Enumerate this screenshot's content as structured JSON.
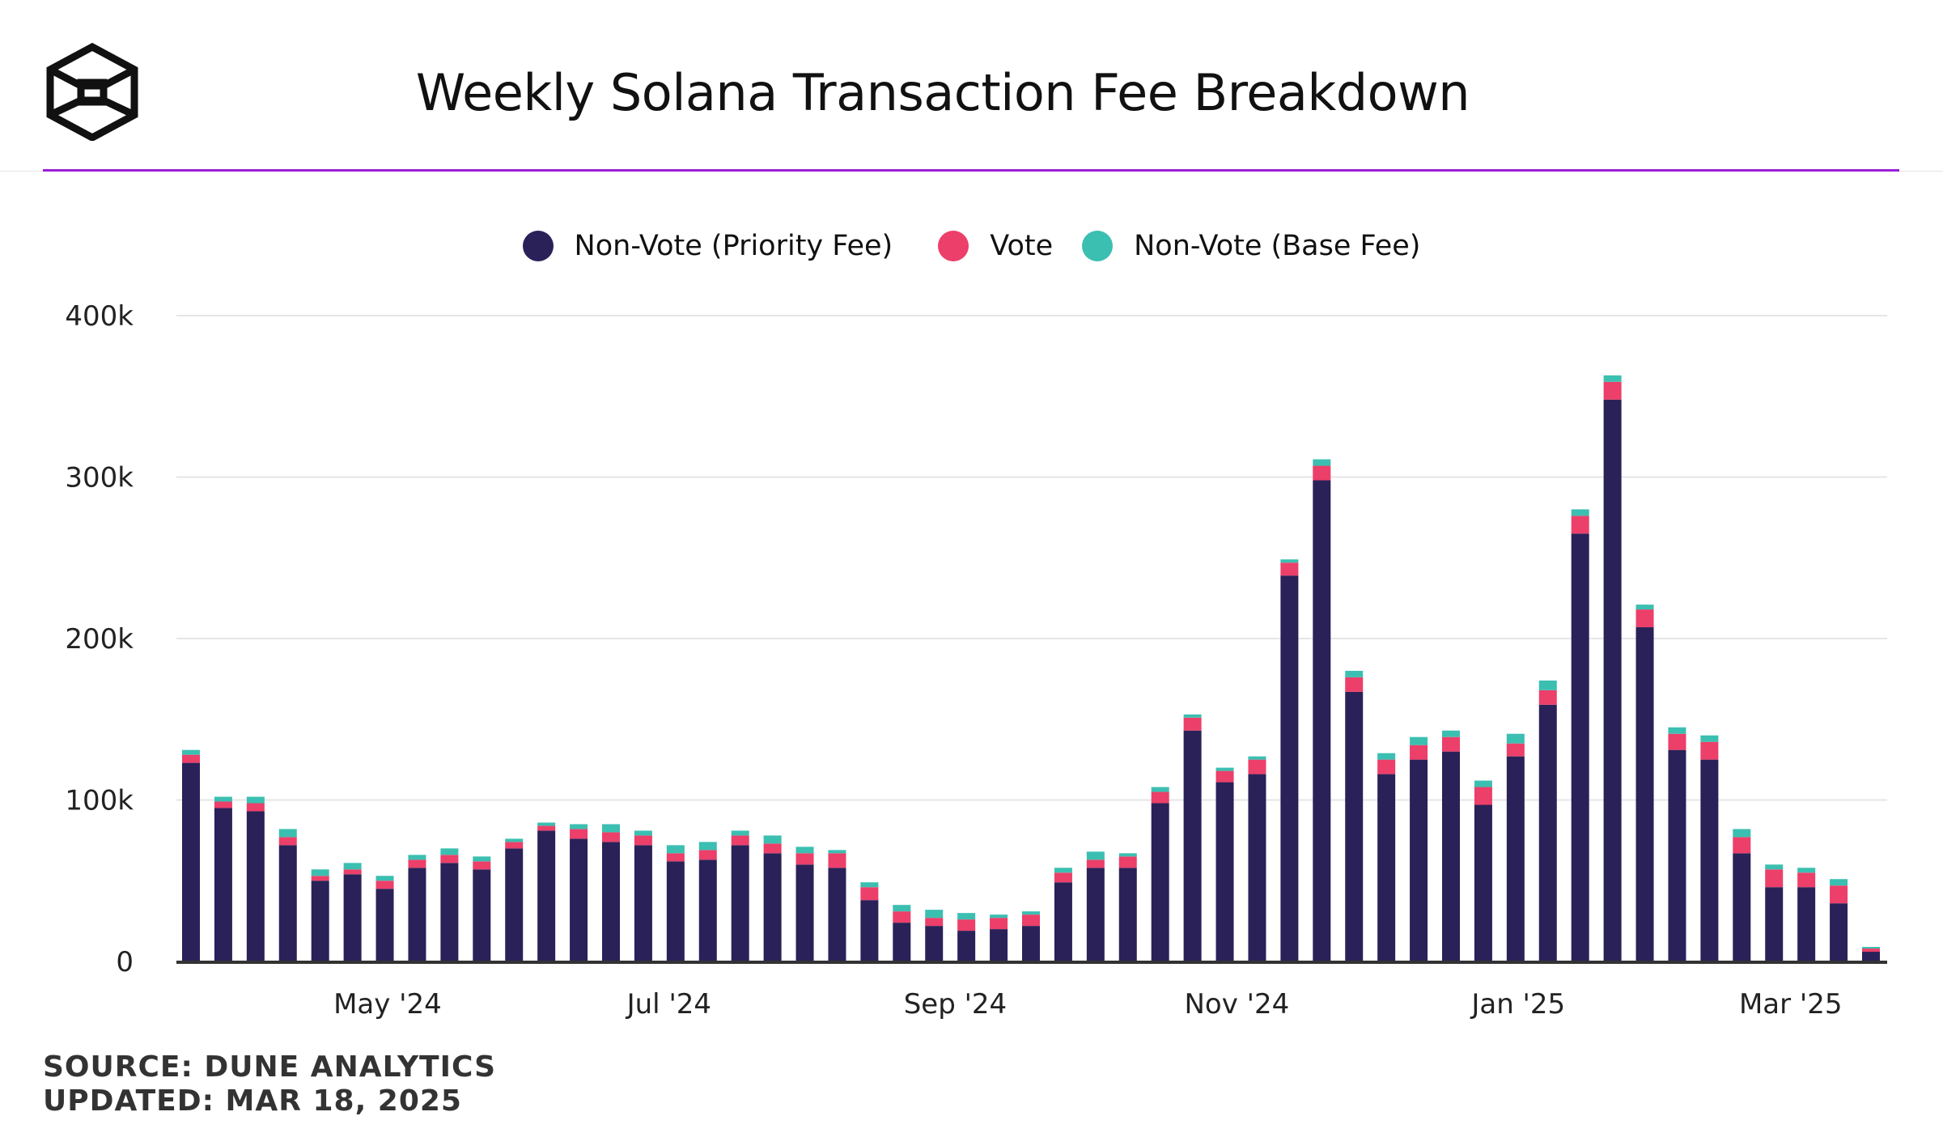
{
  "title": "Weekly Solana Transaction Fee Breakdown",
  "source": "SOURCE: DUNE ANALYTICS",
  "updated": "UPDATED: MAR 18, 2025",
  "logo": "cube-logo-icon",
  "colors": {
    "priority": "#2a2159",
    "vote": "#ec3f69",
    "base": "#3bbfb1",
    "accent": "#9b1fd6"
  },
  "chart_data": {
    "type": "bar",
    "stacked": true,
    "title": "Weekly Solana Transaction Fee Breakdown",
    "legend_position": "top",
    "grid": true,
    "ylim": [
      0,
      400000
    ],
    "yticks": [
      0,
      100000,
      200000,
      300000,
      400000
    ],
    "ytick_labels": [
      "0",
      "100k",
      "200k",
      "300k",
      "400k"
    ],
    "xtick_labels": [
      {
        "date": "2024-05-01",
        "label": "May '24"
      },
      {
        "date": "2024-07-01",
        "label": "Jul '24"
      },
      {
        "date": "2024-09-01",
        "label": "Sep '24"
      },
      {
        "date": "2024-11-01",
        "label": "Nov '24"
      },
      {
        "date": "2025-01-01",
        "label": "Jan '25"
      },
      {
        "date": "2025-03-01",
        "label": "Mar '25"
      }
    ],
    "x": [
      "2024-03-18",
      "2024-03-25",
      "2024-04-01",
      "2024-04-08",
      "2024-04-15",
      "2024-04-22",
      "2024-04-29",
      "2024-05-06",
      "2024-05-13",
      "2024-05-20",
      "2024-05-27",
      "2024-06-03",
      "2024-06-10",
      "2024-06-17",
      "2024-06-24",
      "2024-07-01",
      "2024-07-08",
      "2024-07-15",
      "2024-07-22",
      "2024-07-29",
      "2024-08-05",
      "2024-08-12",
      "2024-08-19",
      "2024-08-26",
      "2024-09-02",
      "2024-09-09",
      "2024-09-16",
      "2024-09-23",
      "2024-09-30",
      "2024-10-07",
      "2024-10-14",
      "2024-10-21",
      "2024-10-28",
      "2024-11-04",
      "2024-11-11",
      "2024-11-18",
      "2024-11-25",
      "2024-12-02",
      "2024-12-09",
      "2024-12-16",
      "2024-12-23",
      "2024-12-30",
      "2025-01-06",
      "2025-01-13",
      "2025-01-20",
      "2025-01-27",
      "2025-02-03",
      "2025-02-10",
      "2025-02-17",
      "2025-02-24",
      "2025-03-03",
      "2025-03-10",
      "2025-03-17"
    ],
    "series": [
      {
        "name": "Non-Vote (Priority Fee)",
        "color": "#2a2159",
        "values": [
          123000,
          95000,
          93000,
          72000,
          50000,
          54000,
          45000,
          58000,
          61000,
          57000,
          70000,
          81000,
          76000,
          74000,
          72000,
          62000,
          63000,
          72000,
          67000,
          60000,
          58000,
          38000,
          24000,
          22000,
          19000,
          20000,
          22000,
          49000,
          58000,
          58000,
          98000,
          143000,
          111000,
          116000,
          239000,
          298000,
          167000,
          116000,
          125000,
          130000,
          97000,
          127000,
          159000,
          265000,
          348000,
          207000,
          131000,
          125000,
          67000,
          46000,
          46000,
          36000,
          6000
        ]
      },
      {
        "name": "Vote",
        "color": "#ec3f69",
        "values": [
          5000,
          4000,
          5000,
          5000,
          3000,
          3000,
          5000,
          5000,
          5000,
          5000,
          4000,
          3000,
          6000,
          6000,
          6000,
          5000,
          6000,
          6000,
          6000,
          7000,
          9000,
          8000,
          7000,
          5000,
          7000,
          7000,
          7000,
          6000,
          5000,
          7000,
          7000,
          8000,
          7000,
          9000,
          8000,
          9000,
          9000,
          9000,
          9000,
          9000,
          11000,
          8000,
          9000,
          11000,
          11000,
          11000,
          10000,
          11000,
          10000,
          11000,
          9000,
          11000,
          2000
        ]
      },
      {
        "name": "Non-Vote (Base Fee)",
        "color": "#3bbfb1",
        "values": [
          3000,
          3000,
          4000,
          5000,
          4000,
          4000,
          3000,
          3000,
          4000,
          3000,
          2000,
          2000,
          3000,
          5000,
          3000,
          5000,
          5000,
          3000,
          5000,
          4000,
          2000,
          3000,
          4000,
          5000,
          4000,
          2000,
          2000,
          3000,
          5000,
          2000,
          3000,
          2000,
          2000,
          2000,
          2000,
          4000,
          4000,
          4000,
          5000,
          4000,
          4000,
          6000,
          6000,
          4000,
          4000,
          3000,
          4000,
          4000,
          5000,
          3000,
          3000,
          4000,
          1000
        ]
      }
    ]
  }
}
